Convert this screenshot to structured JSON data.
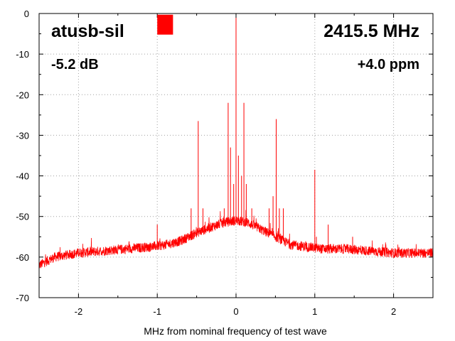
{
  "chart_data": {
    "type": "line",
    "xlabel": "MHz from nominal frequency of test wave",
    "ylabel": "",
    "xlim": [
      -2.5,
      2.5
    ],
    "ylim": [
      -70,
      0
    ],
    "x_ticks": [
      -2,
      -1,
      0,
      1,
      2
    ],
    "y_ticks": [
      0,
      -10,
      -20,
      -30,
      -40,
      -50,
      -60,
      -70
    ],
    "grid": "dotted",
    "annotations": {
      "device": "atusb-sil",
      "frequency": "2415.5 MHz",
      "level": "-5.2 dB",
      "offset": "+4.0 ppm"
    },
    "indicator": {
      "color": "#ff0000",
      "x_range": [
        -1.0,
        -0.8
      ],
      "y_range": [
        -5.2,
        -0.3
      ]
    },
    "series": [
      {
        "color": "#ff0000",
        "noise_floor": {
          "x": [
            -2.5,
            -2.3,
            -2.0,
            -1.7,
            -1.4,
            -1.1,
            -0.9,
            -0.7,
            -0.5,
            -0.3,
            -0.15,
            0.0,
            0.15,
            0.3,
            0.5,
            0.7,
            0.9,
            1.1,
            1.4,
            1.7,
            2.0,
            2.3,
            2.5
          ],
          "y": [
            -62,
            -60,
            -59,
            -58.5,
            -58,
            -57.5,
            -57,
            -56,
            -54,
            -52.5,
            -51.5,
            -51,
            -51.5,
            -53,
            -55,
            -57,
            -57.5,
            -58,
            -58,
            -58.5,
            -59,
            -59,
            -59
          ]
        },
        "spurs": {
          "x": [
            -1.0,
            -0.57,
            -0.48,
            -0.42,
            -0.15,
            -0.1,
            -0.07,
            -0.03,
            0.0,
            0.03,
            0.07,
            0.1,
            0.13,
            0.2,
            0.42,
            0.47,
            0.51,
            0.55,
            0.6,
            1.0,
            1.02,
            1.17,
            1.48
          ],
          "y": [
            -52,
            -48,
            -26.5,
            -48,
            -48,
            -22,
            -33,
            -42,
            0,
            -35,
            -40,
            -22,
            -42,
            -48,
            -48,
            -45,
            -26,
            -48,
            -48,
            -38.5,
            -55,
            -52,
            -55
          ]
        }
      }
    ]
  }
}
